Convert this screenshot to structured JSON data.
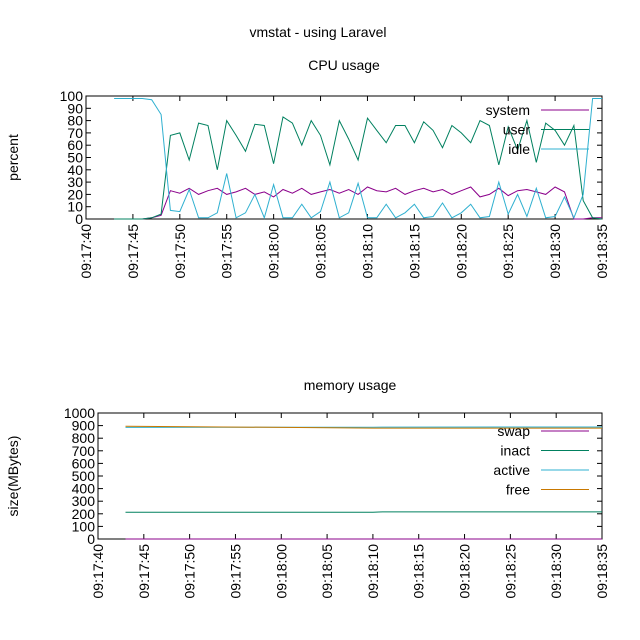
{
  "page_title": "vmstat - using Laravel",
  "chart_data": [
    {
      "type": "line",
      "title": "CPU usage",
      "ylabel": "percent",
      "xlabel": "",
      "ylim": [
        0,
        100
      ],
      "yticks": [
        0,
        10,
        20,
        30,
        40,
        50,
        60,
        70,
        80,
        90,
        100
      ],
      "xlim": [
        "09:17:40",
        "09:18:35"
      ],
      "xticks": [
        "09:17:40",
        "09:17:45",
        "09:17:50",
        "09:17:55",
        "09:18:00",
        "09:18:05",
        "09:18:10",
        "09:18:15",
        "09:18:20",
        "09:18:25",
        "09:18:30",
        "09:18:35"
      ],
      "grid": false,
      "legend_position": "top-right",
      "x": [
        "09:17:43",
        "09:17:44",
        "09:17:45",
        "09:17:46",
        "09:17:47",
        "09:17:48",
        "09:17:49",
        "09:17:50",
        "09:17:51",
        "09:17:52",
        "09:17:53",
        "09:17:54",
        "09:17:55",
        "09:17:56",
        "09:17:57",
        "09:17:58",
        "09:17:59",
        "09:18:00",
        "09:18:01",
        "09:18:02",
        "09:18:03",
        "09:18:04",
        "09:18:05",
        "09:18:06",
        "09:18:07",
        "09:18:08",
        "09:18:09",
        "09:18:10",
        "09:18:11",
        "09:18:12",
        "09:18:13",
        "09:18:14",
        "09:18:15",
        "09:18:16",
        "09:18:17",
        "09:18:18",
        "09:18:19",
        "09:18:20",
        "09:18:21",
        "09:18:22",
        "09:18:23",
        "09:18:24",
        "09:18:25",
        "09:18:26",
        "09:18:27",
        "09:18:28",
        "09:18:29",
        "09:18:30",
        "09:18:31",
        "09:18:32",
        "09:18:33",
        "09:18:34",
        "09:18:35"
      ],
      "series": [
        {
          "name": "system",
          "color": "#8b008b",
          "values": [
            0,
            0,
            0,
            0,
            1,
            3,
            23,
            21,
            25,
            20,
            23,
            25,
            20,
            22,
            25,
            20,
            22,
            18,
            24,
            21,
            25,
            20,
            22,
            24,
            21,
            24,
            20,
            26,
            23,
            22,
            25,
            20,
            23,
            25,
            22,
            24,
            20,
            23,
            26,
            18,
            20,
            25,
            19,
            23,
            24,
            22,
            20,
            26,
            22,
            0,
            0,
            1,
            1
          ]
        },
        {
          "name": "user",
          "color": "#00805f",
          "values": [
            0,
            0,
            0,
            0,
            1,
            4,
            68,
            70,
            48,
            78,
            76,
            40,
            80,
            68,
            55,
            77,
            76,
            45,
            83,
            78,
            60,
            80,
            68,
            44,
            80,
            65,
            48,
            82,
            72,
            62,
            76,
            76,
            62,
            79,
            72,
            58,
            76,
            70,
            62,
            80,
            76,
            44,
            75,
            56,
            80,
            46,
            78,
            72,
            60,
            76,
            15,
            1,
            0
          ]
        },
        {
          "name": "idle",
          "color": "#2fb0d0",
          "values": [
            98,
            98,
            98,
            98,
            97,
            85,
            7,
            6,
            24,
            1,
            1,
            5,
            37,
            1,
            5,
            20,
            1,
            28,
            1,
            1,
            12,
            1,
            6,
            30,
            1,
            5,
            29,
            1,
            1,
            12,
            1,
            5,
            12,
            1,
            2,
            13,
            1,
            5,
            12,
            1,
            2,
            30,
            4,
            20,
            2,
            25,
            1,
            2,
            18,
            1,
            20,
            98,
            98
          ]
        }
      ]
    },
    {
      "type": "line",
      "title": "memory usage",
      "ylabel": "size(MBytes)",
      "xlabel": "",
      "ylim": [
        0,
        1000
      ],
      "yticks": [
        0,
        100,
        200,
        300,
        400,
        500,
        600,
        700,
        800,
        900,
        1000
      ],
      "xlim": [
        "09:17:40",
        "09:18:35"
      ],
      "xticks": [
        "09:17:40",
        "09:17:45",
        "09:17:50",
        "09:17:55",
        "09:18:00",
        "09:18:05",
        "09:18:10",
        "09:18:15",
        "09:18:20",
        "09:18:25",
        "09:18:30",
        "09:18:35"
      ],
      "grid": false,
      "legend_position": "top-right",
      "x": [
        "09:17:43",
        "09:18:10",
        "09:18:11",
        "09:18:35"
      ],
      "series": [
        {
          "name": "swap",
          "color": "#8b008b",
          "values": [
            0,
            0,
            0,
            0
          ]
        },
        {
          "name": "inact",
          "color": "#00805f",
          "values": [
            212,
            212,
            215,
            215
          ]
        },
        {
          "name": "active",
          "color": "#2fb0d0",
          "values": [
            886,
            887,
            888,
            889
          ]
        },
        {
          "name": "free",
          "color": "#c87800",
          "values": [
            895,
            880,
            880,
            880
          ]
        }
      ]
    }
  ]
}
